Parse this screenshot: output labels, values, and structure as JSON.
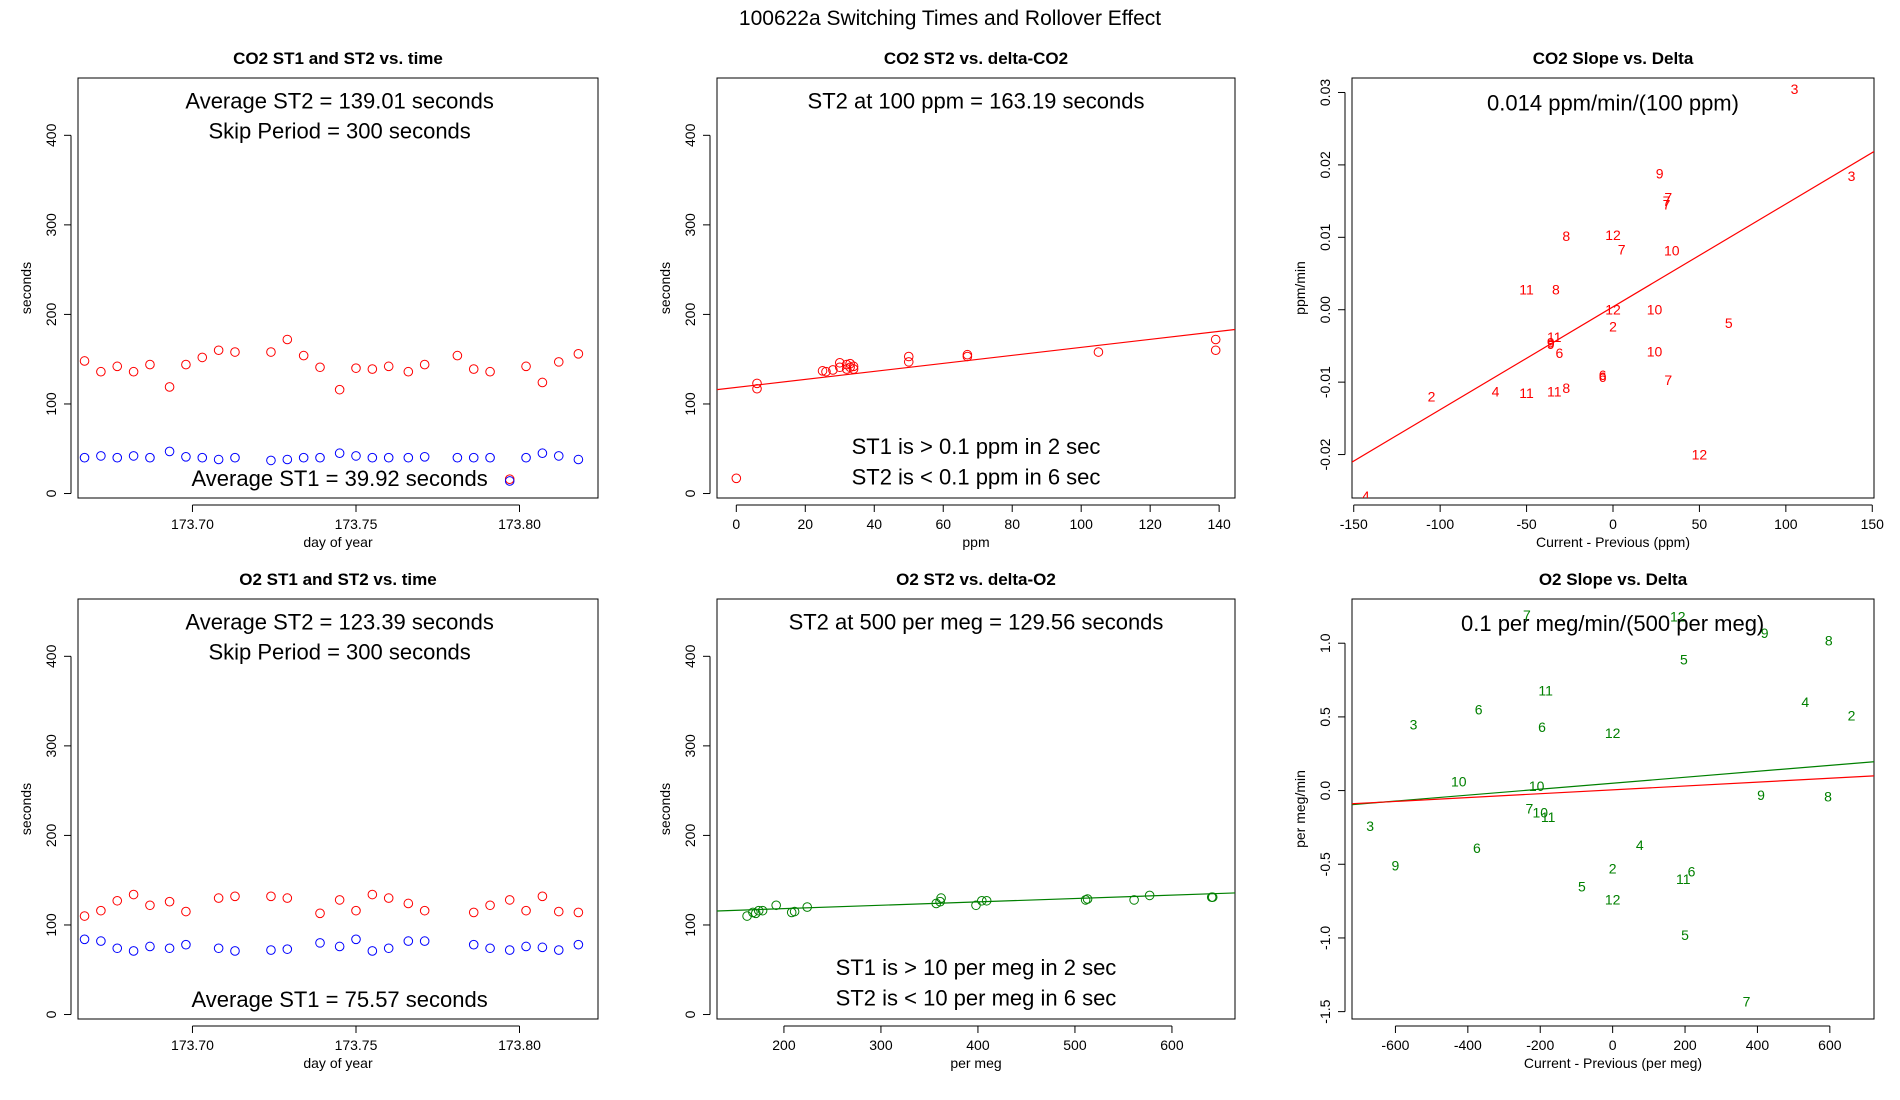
{
  "figure": {
    "title": "100622a   Switching Times and Rollover Effect"
  },
  "colors": {
    "red": "#ff0000",
    "blue": "#0000ff",
    "green": "#008000",
    "axis": "#000000"
  },
  "chart_data": [
    {
      "type": "scatter",
      "title": "CO2 ST1 and ST2 vs. time",
      "xlabel": "day of year",
      "ylabel": "seconds",
      "xlim": [
        173.665,
        173.824
      ],
      "ylim": [
        -5,
        464
      ],
      "xticks": [
        173.7,
        173.75,
        173.8
      ],
      "xtick_labels": [
        "173.70",
        "173.75",
        "173.80"
      ],
      "yticks": [
        0,
        100,
        200,
        300,
        400
      ],
      "annotations": [
        {
          "text": "Average ST2 =  139.01  seconds",
          "x": 173.745,
          "y": 438
        },
        {
          "text": "Skip Period =  300  seconds",
          "x": 173.745,
          "y": 404
        },
        {
          "text": "Average ST1 =  39.92  seconds",
          "x": 173.745,
          "y": 16
        }
      ],
      "series": [
        {
          "color": "red",
          "marker": "circle",
          "x": [
            173.667,
            173.672,
            173.677,
            173.682,
            173.687,
            173.693,
            173.698,
            173.703,
            173.708,
            173.713,
            173.724,
            173.729,
            173.734,
            173.739,
            173.745,
            173.75,
            173.755,
            173.76,
            173.766,
            173.771,
            173.781,
            173.786,
            173.791,
            173.797,
            173.802,
            173.807,
            173.812,
            173.818
          ],
          "y": [
            148,
            136,
            142,
            136,
            144,
            119,
            144,
            152,
            160,
            158,
            158,
            172,
            154,
            141,
            116,
            140,
            139,
            142,
            136,
            144,
            154,
            139,
            136,
            16,
            142,
            124,
            147,
            156
          ]
        },
        {
          "color": "blue",
          "marker": "circle",
          "x": [
            173.667,
            173.672,
            173.677,
            173.682,
            173.687,
            173.693,
            173.698,
            173.703,
            173.708,
            173.713,
            173.724,
            173.729,
            173.734,
            173.739,
            173.745,
            173.75,
            173.755,
            173.76,
            173.766,
            173.771,
            173.781,
            173.786,
            173.791,
            173.797,
            173.802,
            173.807,
            173.812,
            173.818
          ],
          "y": [
            40,
            42,
            40,
            42,
            40,
            47,
            41,
            40,
            38,
            40,
            37,
            38,
            40,
            40,
            45,
            42,
            40,
            40,
            40,
            41,
            40,
            40,
            40,
            14,
            40,
            45,
            42,
            38
          ]
        }
      ]
    },
    {
      "type": "scatter",
      "title": "CO2 ST2 vs. delta-CO2",
      "xlabel": "ppm",
      "ylabel": "seconds",
      "xlim": [
        -5.6,
        144.6
      ],
      "ylim": [
        -5,
        464
      ],
      "xticks": [
        0,
        20,
        40,
        60,
        80,
        100,
        120,
        140
      ],
      "yticks": [
        0,
        100,
        200,
        300,
        400
      ],
      "annotations": [
        {
          "text": "ST2 at 100 ppm =  163.19  seconds",
          "x": 69.5,
          "y": 438
        },
        {
          "text": "ST1 is > 0.1 ppm in 2 sec",
          "x": 69.5,
          "y": 52
        },
        {
          "text": "ST2 is < 0.1 ppm in 6 sec",
          "x": 69.5,
          "y": 18
        }
      ],
      "fit_line": {
        "color": "red",
        "intercept": 118.5,
        "slope": 0.447
      },
      "series": [
        {
          "color": "red",
          "marker": "circle",
          "x": [
            0,
            6,
            6,
            25,
            26,
            28,
            30,
            30,
            32,
            32,
            33,
            33,
            34,
            34,
            50,
            50,
            67,
            67,
            105,
            139,
            139
          ],
          "y": [
            17,
            117,
            123,
            137,
            136,
            138,
            141,
            146,
            139,
            144,
            141,
            145,
            139,
            142,
            147,
            153,
            153,
            155,
            158,
            160,
            172
          ]
        }
      ]
    },
    {
      "type": "scatter",
      "title": "CO2 Slope vs. Delta",
      "xlabel": "Current - Previous (ppm)",
      "ylabel": "ppm/min",
      "xlim": [
        -151,
        151
      ],
      "ylim": [
        -0.026,
        0.032
      ],
      "xticks": [
        -150,
        -100,
        -50,
        0,
        50,
        100,
        150
      ],
      "yticks": [
        -0.02,
        -0.01,
        0.0,
        0.01,
        0.02,
        0.03
      ],
      "ytick_labels": [
        "-0.02",
        "-0.01",
        "0.00",
        "0.01",
        "0.02",
        "0.03"
      ],
      "annotations": [
        {
          "text": "0.014  ppm/min/(100 ppm)",
          "x": 0,
          "y": 0.0285
        }
      ],
      "fit_line": {
        "color": "red",
        "intercept": 0.0004,
        "slope": 0.000142
      },
      "series": [
        {
          "color": "red",
          "marker": "label",
          "x": [
            105,
            138,
            27,
            32,
            31,
            31,
            -27,
            0,
            5,
            34,
            -50,
            -33,
            0,
            24,
            -36,
            0,
            24,
            -36,
            -34,
            67,
            -31,
            -6,
            -6,
            -34,
            -105,
            -68,
            -50,
            -27,
            32,
            50,
            -143
          ],
          "y": [
            0.0305,
            0.0185,
            0.0188,
            0.0155,
            0.015,
            0.0145,
            0.0102,
            0.0103,
            0.0083,
            0.0082,
            0.0028,
            0.0028,
            0.0,
            0.0,
            -0.0045,
            -0.0023,
            -0.0058,
            -0.0047,
            -0.0038,
            -0.0018,
            -0.006,
            -0.0093,
            -0.009,
            -0.0113,
            -0.012,
            -0.0113,
            -0.0115,
            -0.0108,
            -0.0097,
            -0.02,
            -0.0257
          ],
          "labels": [
            "3",
            "3",
            "9",
            "7",
            "7",
            "7",
            "8",
            "12",
            "7",
            "10",
            "11",
            "8",
            "12",
            "10",
            "9",
            "2",
            "10",
            "9",
            "11",
            "5",
            "6",
            "6",
            "6",
            "11",
            "2",
            "4",
            "11",
            "8",
            "7",
            "12",
            "4"
          ]
        }
      ]
    },
    {
      "type": "scatter",
      "title": "O2 ST1 and ST2 vs. time",
      "xlabel": "day of year",
      "ylabel": "seconds",
      "xlim": [
        173.665,
        173.824
      ],
      "ylim": [
        -5,
        464
      ],
      "xticks": [
        173.7,
        173.75,
        173.8
      ],
      "xtick_labels": [
        "173.70",
        "173.75",
        "173.80"
      ],
      "yticks": [
        0,
        100,
        200,
        300,
        400
      ],
      "annotations": [
        {
          "text": "Average ST2 =  123.39  seconds",
          "x": 173.745,
          "y": 438
        },
        {
          "text": "Skip Period =  300  seconds",
          "x": 173.745,
          "y": 404
        },
        {
          "text": "Average ST1 =  75.57  seconds",
          "x": 173.745,
          "y": 16
        }
      ],
      "series": [
        {
          "color": "red",
          "marker": "circle",
          "x": [
            173.667,
            173.672,
            173.677,
            173.682,
            173.687,
            173.693,
            173.698,
            173.708,
            173.713,
            173.724,
            173.729,
            173.739,
            173.745,
            173.75,
            173.755,
            173.76,
            173.766,
            173.771,
            173.786,
            173.791,
            173.797,
            173.802,
            173.807,
            173.812,
            173.818
          ],
          "y": [
            110,
            116,
            127,
            134,
            122,
            126,
            115,
            130,
            132,
            132,
            130,
            113,
            128,
            116,
            134,
            130,
            124,
            116,
            114,
            122,
            128,
            116,
            132,
            115,
            114
          ]
        },
        {
          "color": "blue",
          "marker": "circle",
          "x": [
            173.667,
            173.672,
            173.677,
            173.682,
            173.687,
            173.693,
            173.698,
            173.708,
            173.713,
            173.724,
            173.729,
            173.739,
            173.745,
            173.75,
            173.755,
            173.76,
            173.766,
            173.771,
            173.786,
            173.791,
            173.797,
            173.802,
            173.807,
            173.812,
            173.818
          ],
          "y": [
            84,
            82,
            74,
            71,
            76,
            74,
            78,
            74,
            71,
            72,
            73,
            80,
            76,
            84,
            71,
            74,
            82,
            82,
            78,
            74,
            72,
            76,
            75,
            72,
            78
          ]
        }
      ]
    },
    {
      "type": "scatter",
      "title": "O2 ST2 vs. delta-O2",
      "xlabel": "per meg",
      "ylabel": "seconds",
      "xlim": [
        131,
        665
      ],
      "ylim": [
        -5,
        464
      ],
      "xticks": [
        200,
        300,
        400,
        500,
        600
      ],
      "yticks": [
        0,
        100,
        200,
        300,
        400
      ],
      "annotations": [
        {
          "text": "ST2 at 500 per meg =  129.56  seconds",
          "x": 398,
          "y": 438
        },
        {
          "text": "ST1 is > 10 per meg in 2 sec",
          "x": 398,
          "y": 52
        },
        {
          "text": "ST2 is < 10 per meg in 6 sec",
          "x": 398,
          "y": 18
        }
      ],
      "fit_line": {
        "color": "green",
        "intercept": 110.7,
        "slope": 0.0377
      },
      "series": [
        {
          "color": "green",
          "marker": "circle",
          "x": [
            162,
            168,
            171,
            174,
            178,
            192,
            208,
            211,
            224,
            357,
            361,
            362,
            398,
            404,
            409,
            511,
            513,
            561,
            577,
            641,
            642
          ],
          "y": [
            110,
            114,
            113,
            116,
            116,
            122,
            114,
            115,
            120,
            124,
            126,
            130,
            122,
            127,
            127,
            128,
            129,
            128,
            133,
            131,
            131
          ]
        }
      ]
    },
    {
      "type": "scatter",
      "title": "O2 Slope vs. Delta",
      "xlabel": "Current - Previous (per meg)",
      "ylabel": "per meg/min",
      "xlim": [
        -720,
        722
      ],
      "ylim": [
        -1.55,
        1.3
      ],
      "xticks": [
        -600,
        -400,
        -200,
        0,
        200,
        400,
        600
      ],
      "yticks": [
        -1.5,
        -1.0,
        -0.5,
        0.0,
        0.5,
        1.0
      ],
      "ytick_labels": [
        "-1.5",
        "-1.0",
        "-0.5",
        "0.0",
        "0.5",
        "1.0"
      ],
      "annotations": [
        {
          "text": "0.1  per meg/min/(500 per meg)",
          "x": 0,
          "y": 1.13
        }
      ],
      "fit_lines": [
        {
          "color": "green",
          "intercept": 0.05,
          "slope": 0.000202
        },
        {
          "color": "red",
          "intercept": 0.005,
          "slope": 0.000131
        }
      ],
      "series": [
        {
          "color": "green",
          "marker": "label",
          "x": [
            -237,
            180,
            420,
            597,
            197,
            -185,
            -370,
            532,
            -550,
            660,
            -195,
            0,
            -425,
            -210,
            -230,
            -200,
            -178,
            410,
            595,
            -670,
            75,
            0,
            218,
            -600,
            -375,
            -85,
            195,
            0,
            200,
            370
          ],
          "y": [
            1.19,
            1.18,
            1.07,
            1.02,
            0.89,
            0.68,
            0.55,
            0.6,
            0.45,
            0.51,
            0.43,
            0.39,
            0.06,
            0.03,
            -0.12,
            -0.15,
            -0.18,
            -0.03,
            -0.04,
            -0.24,
            -0.37,
            -0.53,
            -0.55,
            -0.51,
            -0.39,
            -0.65,
            -0.6,
            -0.74,
            -0.98,
            -1.43
          ],
          "labels": [
            "7",
            "12",
            "9",
            "8",
            "5",
            "11",
            "6",
            "4",
            "3",
            "2",
            "6",
            "12",
            "10",
            "10",
            "7",
            "10",
            "11",
            "9",
            "8",
            "3",
            "4",
            "2",
            "6",
            "9",
            "6",
            "5",
            "11",
            "12",
            "5",
            "7"
          ]
        }
      ]
    }
  ]
}
